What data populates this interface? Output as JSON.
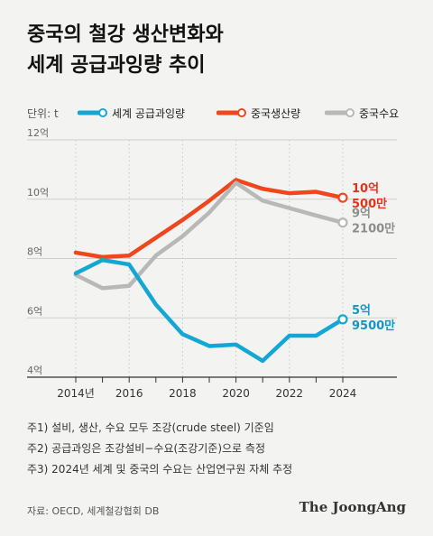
{
  "title": {
    "line1": "중국의 철강 생산변화와",
    "line2": "세계 공급과잉량 추이"
  },
  "unit_label": "단위: t",
  "legend": [
    {
      "key": "oversupply",
      "label": "세계 공급과잉량",
      "color": "#14a7d3"
    },
    {
      "key": "production",
      "label": "중국생산량",
      "color": "#f0461e"
    },
    {
      "key": "demand",
      "label": "중국수요",
      "color": "#b8b8b8"
    }
  ],
  "chart_data": {
    "type": "line",
    "x": [
      2014,
      2015,
      2016,
      2017,
      2018,
      2019,
      2020,
      2021,
      2022,
      2023,
      2024
    ],
    "xticks": [
      "2014년",
      "2016",
      "2018",
      "2020",
      "2022",
      "2024"
    ],
    "yticks": [
      "12억",
      "10억",
      "8억",
      "6억",
      "4억"
    ],
    "ylim": [
      4,
      12
    ],
    "series": [
      {
        "name": "중국생산량",
        "key": "production",
        "color": "#f0461e",
        "values": [
          8.2,
          8.05,
          8.1,
          8.7,
          9.3,
          9.95,
          10.65,
          10.35,
          10.2,
          10.25,
          10.05
        ]
      },
      {
        "name": "중국수요",
        "key": "demand",
        "color": "#b8b8b8",
        "values": [
          7.45,
          7.0,
          7.08,
          8.1,
          8.75,
          9.55,
          10.55,
          9.95,
          9.7,
          9.45,
          9.21
        ]
      },
      {
        "name": "세계 공급과잉량",
        "key": "oversupply",
        "color": "#14a7d3",
        "values": [
          7.5,
          7.95,
          7.8,
          6.45,
          5.45,
          5.05,
          5.1,
          4.55,
          5.4,
          5.4,
          5.95
        ]
      }
    ],
    "end_labels": [
      {
        "key": "production",
        "line1": "10억",
        "line2": "500만",
        "color": "#e4321b"
      },
      {
        "key": "demand",
        "line1": "9억",
        "line2": "2100만",
        "color": "#8d8d8d"
      },
      {
        "key": "oversupply",
        "line1": "5억",
        "line2": "9500만",
        "color": "#1497c6"
      }
    ]
  },
  "notes": [
    "주1) 설비, 생산, 수요 모두 조강(crude steel) 기준임",
    "주2) 공급과잉은 조강설비−수요(조강기준)으로 측정",
    "주3) 2024년 세계 및 중국의 수요는 산업연구원 자체 추정"
  ],
  "source": "자료: OECD, 세계철강협회 DB",
  "brand": "The JoongAng"
}
